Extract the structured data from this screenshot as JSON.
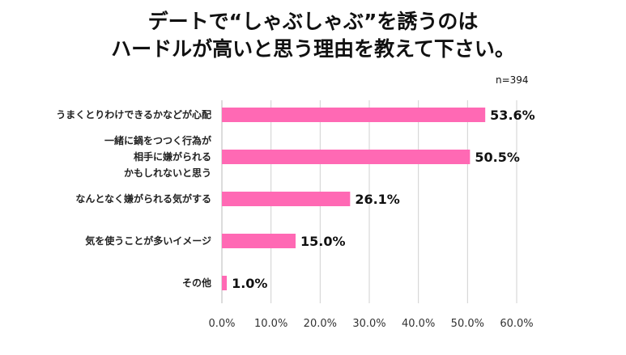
{
  "title": {
    "line1": "デートで“しゃぶしゃぶ”を誘うのは",
    "line2": "ハードルが高いと思う理由を教えて下さい。"
  },
  "note": "n=394",
  "chart_data": {
    "type": "bar",
    "orientation": "horizontal",
    "categories": [
      [
        "うまくとりわけできるかなどが心配"
      ],
      [
        "一緒に鍋をつつく行為が",
        "相手に嫌がられる",
        "かもしれないと思う"
      ],
      [
        "なんとなく嫌がられる気がする"
      ],
      [
        "気を使うことが多いイメージ"
      ],
      [
        "その他"
      ]
    ],
    "values": [
      53.6,
      50.5,
      26.1,
      15.0,
      1.0
    ],
    "value_labels": [
      "53.6%",
      "50.5%",
      "26.1%",
      "15.0%",
      "1.0%"
    ],
    "xlim": [
      0,
      60
    ],
    "ticks": [
      "0.0%",
      "10.0%",
      "20.0%",
      "30.0%",
      "40.0%",
      "50.0%",
      "60.0%"
    ],
    "grid": "vertical",
    "bar_color": "#ff69b4",
    "grid_color": "#d0d0d0"
  }
}
